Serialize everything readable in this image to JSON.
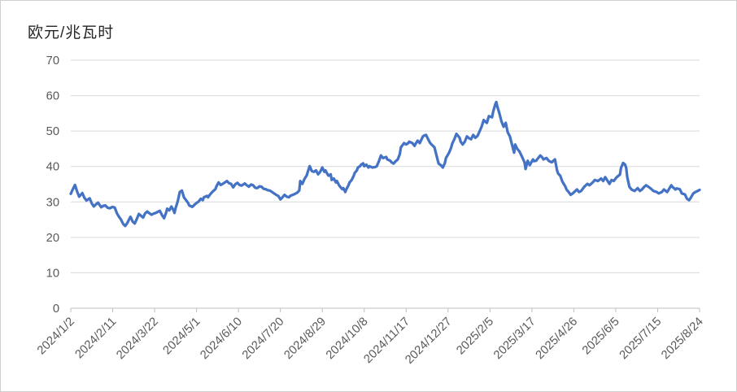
{
  "title": "欧元/兆瓦时",
  "colors": {
    "line": "#4472c4",
    "gridline": "#d9d9d9",
    "axis": "#bfbfbf",
    "axis_text": "#595959",
    "title_text": "#262626"
  },
  "chart_data": {
    "type": "line",
    "title": "欧元/兆瓦时",
    "xlabel": "",
    "ylabel": "欧元/兆瓦时",
    "ylim": [
      0,
      70
    ],
    "y_ticks": [
      0,
      10,
      20,
      30,
      40,
      50,
      60,
      70
    ],
    "x_range_days": [
      0,
      600
    ],
    "x_tick_days": [
      0,
      40,
      80,
      120,
      160,
      200,
      240,
      280,
      320,
      360,
      400,
      440,
      480,
      520,
      560,
      600
    ],
    "x_tick_labels": [
      "2024/1/2",
      "2024/2/11",
      "2024/3/22",
      "2024/5/1",
      "2024/6/10",
      "2024/7/20",
      "2024/8/29",
      "2024/10/8",
      "2024/11/17",
      "2024/12/27",
      "2025/2/5",
      "2025/3/17",
      "2025/4/26",
      "2025/6/5",
      "2025/7/15",
      "2025/8/24"
    ],
    "grid": true,
    "legend": false,
    "points": [
      [
        0,
        32.3
      ],
      [
        2,
        33.6
      ],
      [
        4,
        34.8
      ],
      [
        6,
        33.0
      ],
      [
        8,
        31.5
      ],
      [
        11,
        32.5
      ],
      [
        13,
        31.2
      ],
      [
        15,
        30.4
      ],
      [
        18,
        31.0
      ],
      [
        20,
        29.6
      ],
      [
        22,
        28.7
      ],
      [
        24,
        29.3
      ],
      [
        26,
        29.8
      ],
      [
        29,
        28.5
      ],
      [
        31,
        28.9
      ],
      [
        33,
        29.0
      ],
      [
        35,
        28.4
      ],
      [
        37,
        28.2
      ],
      [
        40,
        28.6
      ],
      [
        42,
        28.4
      ],
      [
        44,
        26.8
      ],
      [
        46,
        25.8
      ],
      [
        48,
        25.0
      ],
      [
        50,
        23.8
      ],
      [
        52,
        23.2
      ],
      [
        54,
        24.1
      ],
      [
        56,
        25.3
      ],
      [
        57,
        25.8
      ],
      [
        59,
        24.5
      ],
      [
        61,
        23.9
      ],
      [
        63,
        25.2
      ],
      [
        65,
        26.6
      ],
      [
        67,
        26.1
      ],
      [
        69,
        25.6
      ],
      [
        71,
        26.8
      ],
      [
        73,
        27.3
      ],
      [
        75,
        26.8
      ],
      [
        77,
        26.4
      ],
      [
        79,
        26.7
      ],
      [
        81,
        26.9
      ],
      [
        83,
        27.2
      ],
      [
        85,
        27.5
      ],
      [
        87,
        26.3
      ],
      [
        89,
        25.4
      ],
      [
        91,
        27.0
      ],
      [
        92,
        28.1
      ],
      [
        94,
        27.6
      ],
      [
        96,
        28.7
      ],
      [
        98,
        27.6
      ],
      [
        99,
        26.9
      ],
      [
        100,
        28.2
      ],
      [
        102,
        30.1
      ],
      [
        104,
        32.8
      ],
      [
        106,
        33.2
      ],
      [
        108,
        31.3
      ],
      [
        110,
        30.5
      ],
      [
        112,
        29.7
      ],
      [
        113,
        29.0
      ],
      [
        116,
        28.6
      ],
      [
        118,
        29.2
      ],
      [
        120,
        29.7
      ],
      [
        122,
        30.1
      ],
      [
        124,
        30.9
      ],
      [
        126,
        30.5
      ],
      [
        127,
        31.3
      ],
      [
        130,
        31.7
      ],
      [
        131,
        31.3
      ],
      [
        133,
        32.1
      ],
      [
        135,
        32.8
      ],
      [
        138,
        33.6
      ],
      [
        139,
        34.4
      ],
      [
        141,
        35.5
      ],
      [
        143,
        34.8
      ],
      [
        145,
        35.1
      ],
      [
        147,
        35.5
      ],
      [
        149,
        35.9
      ],
      [
        151,
        35.3
      ],
      [
        153,
        35.1
      ],
      [
        155,
        34.1
      ],
      [
        157,
        35.0
      ],
      [
        159,
        35.4
      ],
      [
        161,
        34.8
      ],
      [
        163,
        34.6
      ],
      [
        166,
        35.2
      ],
      [
        168,
        34.7
      ],
      [
        170,
        34.3
      ],
      [
        172,
        34.9
      ],
      [
        174,
        34.7
      ],
      [
        176,
        34.0
      ],
      [
        178,
        33.9
      ],
      [
        180,
        34.4
      ],
      [
        182,
        34.3
      ],
      [
        184,
        33.7
      ],
      [
        186,
        33.6
      ],
      [
        188,
        33.3
      ],
      [
        190,
        33.2
      ],
      [
        192,
        32.8
      ],
      [
        194,
        32.4
      ],
      [
        196,
        32.0
      ],
      [
        198,
        31.7
      ],
      [
        200,
        30.7
      ],
      [
        202,
        31.3
      ],
      [
        204,
        32.0
      ],
      [
        206,
        31.5
      ],
      [
        208,
        31.3
      ],
      [
        210,
        31.8
      ],
      [
        212,
        32.0
      ],
      [
        214,
        32.3
      ],
      [
        216,
        32.6
      ],
      [
        218,
        33.2
      ],
      [
        219,
        35.9
      ],
      [
        221,
        35.1
      ],
      [
        223,
        36.5
      ],
      [
        225,
        37.4
      ],
      [
        227,
        39.3
      ],
      [
        228,
        40.1
      ],
      [
        230,
        38.7
      ],
      [
        232,
        38.5
      ],
      [
        234,
        38.9
      ],
      [
        236,
        37.8
      ],
      [
        238,
        38.5
      ],
      [
        240,
        39.7
      ],
      [
        242,
        38.5
      ],
      [
        243,
        38.9
      ],
      [
        245,
        37.8
      ],
      [
        246,
        37.4
      ],
      [
        248,
        37.8
      ],
      [
        249,
        36.2
      ],
      [
        251,
        36.6
      ],
      [
        253,
        35.5
      ],
      [
        254,
        35.9
      ],
      [
        256,
        34.7
      ],
      [
        257,
        34.3
      ],
      [
        259,
        33.6
      ],
      [
        260,
        33.9
      ],
      [
        262,
        32.8
      ],
      [
        263,
        33.6
      ],
      [
        265,
        34.7
      ],
      [
        266,
        35.5
      ],
      [
        268,
        36.2
      ],
      [
        270,
        37.4
      ],
      [
        271,
        38.2
      ],
      [
        273,
        38.9
      ],
      [
        274,
        39.7
      ],
      [
        276,
        40.1
      ],
      [
        277,
        40.5
      ],
      [
        279,
        40.9
      ],
      [
        280,
        40.1
      ],
      [
        282,
        40.5
      ],
      [
        284,
        39.7
      ],
      [
        285,
        40.1
      ],
      [
        288,
        39.7
      ],
      [
        291,
        39.9
      ],
      [
        292,
        40.1
      ],
      [
        294,
        41.5
      ],
      [
        296,
        43.1
      ],
      [
        298,
        42.4
      ],
      [
        301,
        42.7
      ],
      [
        302,
        42.0
      ],
      [
        305,
        41.6
      ],
      [
        306,
        41.2
      ],
      [
        308,
        40.8
      ],
      [
        310,
        41.5
      ],
      [
        312,
        42.0
      ],
      [
        314,
        43.5
      ],
      [
        315,
        45.4
      ],
      [
        318,
        46.6
      ],
      [
        320,
        46.2
      ],
      [
        322,
        46.6
      ],
      [
        323,
        47.0
      ],
      [
        326,
        46.6
      ],
      [
        328,
        45.8
      ],
      [
        329,
        46.4
      ],
      [
        331,
        47.3
      ],
      [
        333,
        46.6
      ],
      [
        336,
        48.5
      ],
      [
        337,
        48.7
      ],
      [
        339,
        48.9
      ],
      [
        341,
        47.7
      ],
      [
        343,
        46.6
      ],
      [
        345,
        46.0
      ],
      [
        347,
        45.4
      ],
      [
        349,
        43.1
      ],
      [
        351,
        40.8
      ],
      [
        353,
        40.4
      ],
      [
        354,
        40.1
      ],
      [
        355,
        39.7
      ],
      [
        357,
        41.0
      ],
      [
        358,
        42.4
      ],
      [
        361,
        43.9
      ],
      [
        363,
        45.4
      ],
      [
        364,
        46.5
      ],
      [
        366,
        47.7
      ],
      [
        368,
        49.2
      ],
      [
        371,
        48.1
      ],
      [
        372,
        47.0
      ],
      [
        374,
        46.2
      ],
      [
        376,
        47.0
      ],
      [
        378,
        48.5
      ],
      [
        380,
        48.0
      ],
      [
        382,
        47.7
      ],
      [
        384,
        48.9
      ],
      [
        386,
        48.1
      ],
      [
        388,
        48.6
      ],
      [
        389,
        49.2
      ],
      [
        392,
        51.2
      ],
      [
        394,
        53.1
      ],
      [
        395,
        52.8
      ],
      [
        397,
        52.3
      ],
      [
        399,
        54.2
      ],
      [
        402,
        53.9
      ],
      [
        403,
        55.4
      ],
      [
        405,
        57.5
      ],
      [
        406,
        58.2
      ],
      [
        407,
        56.9
      ],
      [
        409,
        55.0
      ],
      [
        411,
        52.7
      ],
      [
        413,
        51.2
      ],
      [
        415,
        52.3
      ],
      [
        417,
        49.6
      ],
      [
        419,
        48.5
      ],
      [
        420,
        47.3
      ],
      [
        423,
        43.9
      ],
      [
        424,
        46.2
      ],
      [
        426,
        45.0
      ],
      [
        428,
        44.3
      ],
      [
        430,
        43.1
      ],
      [
        433,
        41.2
      ],
      [
        434,
        39.3
      ],
      [
        436,
        41.6
      ],
      [
        438,
        40.4
      ],
      [
        441,
        42.0
      ],
      [
        442,
        41.5
      ],
      [
        444,
        41.6
      ],
      [
        446,
        42.4
      ],
      [
        448,
        43.1
      ],
      [
        450,
        42.5
      ],
      [
        451,
        42.0
      ],
      [
        454,
        42.4
      ],
      [
        456,
        41.6
      ],
      [
        458,
        41.3
      ],
      [
        459,
        41.2
      ],
      [
        462,
        42.0
      ],
      [
        464,
        38.9
      ],
      [
        465,
        38.0
      ],
      [
        467,
        37.4
      ],
      [
        469,
        35.8
      ],
      [
        472,
        34.3
      ],
      [
        473,
        33.5
      ],
      [
        475,
        32.8
      ],
      [
        477,
        32.0
      ],
      [
        479,
        32.4
      ],
      [
        483,
        33.5
      ],
      [
        485,
        32.8
      ],
      [
        487,
        33.1
      ],
      [
        490,
        34.3
      ],
      [
        493,
        35.1
      ],
      [
        495,
        34.7
      ],
      [
        498,
        35.5
      ],
      [
        500,
        36.2
      ],
      [
        503,
        35.9
      ],
      [
        506,
        36.6
      ],
      [
        508,
        35.9
      ],
      [
        510,
        37.0
      ],
      [
        514,
        35.1
      ],
      [
        516,
        36.2
      ],
      [
        518,
        35.9
      ],
      [
        521,
        37.0
      ],
      [
        524,
        37.7
      ],
      [
        525,
        39.6
      ],
      [
        527,
        41.0
      ],
      [
        529,
        40.5
      ],
      [
        530,
        39.6
      ],
      [
        531,
        37.0
      ],
      [
        533,
        34.3
      ],
      [
        535,
        33.5
      ],
      [
        538,
        33.1
      ],
      [
        541,
        33.9
      ],
      [
        543,
        33.1
      ],
      [
        545,
        33.5
      ],
      [
        547,
        34.2
      ],
      [
        549,
        34.7
      ],
      [
        551,
        34.3
      ],
      [
        553,
        33.9
      ],
      [
        556,
        33.1
      ],
      [
        559,
        32.8
      ],
      [
        561,
        32.4
      ],
      [
        564,
        32.8
      ],
      [
        566,
        33.5
      ],
      [
        569,
        32.8
      ],
      [
        570,
        33.2
      ],
      [
        573,
        34.7
      ],
      [
        574,
        34.3
      ],
      [
        577,
        33.5
      ],
      [
        578,
        33.8
      ],
      [
        581,
        33.6
      ],
      [
        582,
        33.1
      ],
      [
        583,
        32.4
      ],
      [
        586,
        32.1
      ],
      [
        588,
        30.9
      ],
      [
        590,
        30.5
      ],
      [
        591,
        30.9
      ],
      [
        594,
        32.4
      ],
      [
        596,
        32.8
      ],
      [
        599,
        33.2
      ],
      [
        600,
        33.4
      ]
    ]
  }
}
